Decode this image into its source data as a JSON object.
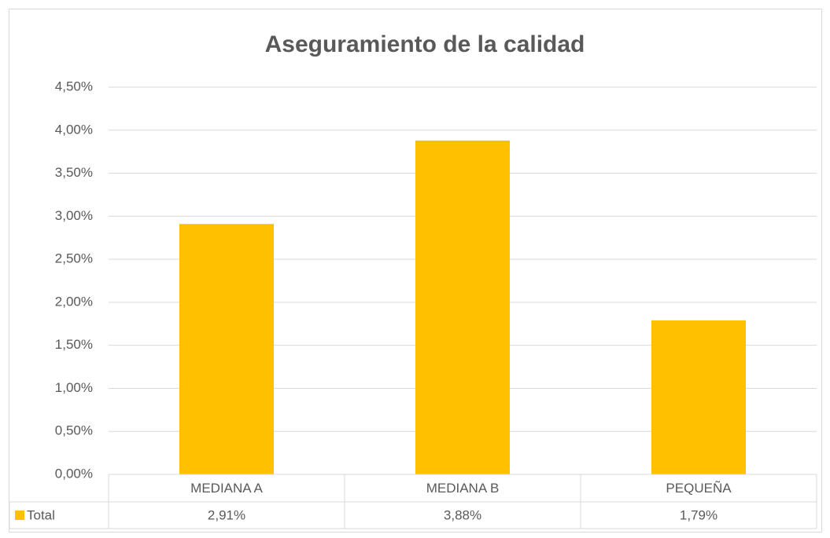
{
  "chart_data": {
    "type": "bar",
    "title": "Aseguramiento de la calidad",
    "categories": [
      "MEDIANA A",
      "MEDIANA B",
      "PEQUEÑA"
    ],
    "series": [
      {
        "name": "Total",
        "color": "#ffc000",
        "values": [
          2.91,
          3.88,
          1.79
        ],
        "value_labels": [
          "2,91%",
          "3,88%",
          "1,79%"
        ]
      }
    ],
    "ylim": [
      0,
      4.5
    ],
    "yticks": [
      {
        "value": 0,
        "label": "0,00%"
      },
      {
        "value": 0.5,
        "label": "0,50%"
      },
      {
        "value": 1,
        "label": "1,00%"
      },
      {
        "value": 1.5,
        "label": "1,50%"
      },
      {
        "value": 2,
        "label": "2,00%"
      },
      {
        "value": 2.5,
        "label": "2,50%"
      },
      {
        "value": 3,
        "label": "3,00%"
      },
      {
        "value": 3.5,
        "label": "3,50%"
      },
      {
        "value": 4,
        "label": "4,00%"
      },
      {
        "value": 4.5,
        "label": "4,50%"
      }
    ],
    "grid": true,
    "data_table": true
  }
}
